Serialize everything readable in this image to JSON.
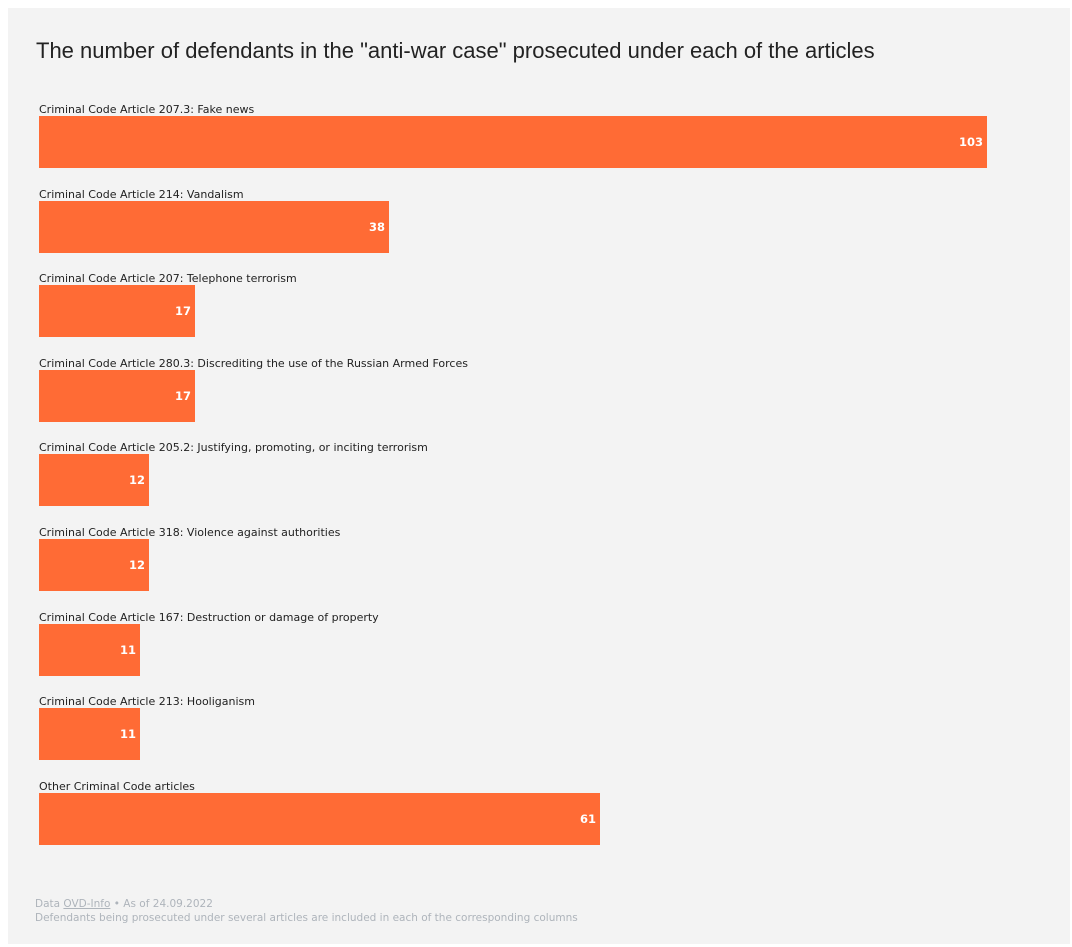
{
  "chart_data": {
    "type": "bar",
    "orientation": "horizontal",
    "title": "The number of defendants in the \"anti-war case\" prosecuted under each of the articles",
    "categories": [
      "Criminal Code Article 207.3: Fake news",
      "Criminal Code Article 214: Vandalism",
      "Criminal Code Article 207: Telephone terrorism",
      "Criminal Code Article 280.3: Discrediting the use of the Russian Armed Forces",
      "Criminal Code Article 205.2: Justifying, promoting, or inciting terrorism",
      "Criminal Code Article 318: Violence against authorities",
      "Criminal Code Article 167: Destruction or damage of property",
      "Criminal Code Article 213: Hooliganism",
      "Other Criminal Code articles"
    ],
    "values": [
      103,
      38,
      17,
      17,
      12,
      12,
      11,
      11,
      61
    ],
    "xlim": [
      0,
      103
    ],
    "grid": false,
    "bar_color": "#ff6b35"
  },
  "footer": {
    "source_prefix": "Data",
    "source_name": "OVD-Info",
    "as_of": "• As of 24.09.2022",
    "note": "Defendants being prosecuted under several articles are included in each of the corresponding columns"
  }
}
